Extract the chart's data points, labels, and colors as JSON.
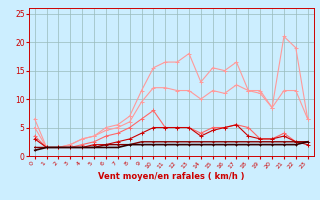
{
  "x": [
    0,
    1,
    2,
    3,
    4,
    5,
    6,
    7,
    8,
    9,
    10,
    11,
    12,
    13,
    14,
    15,
    16,
    17,
    18,
    19,
    20,
    21,
    22,
    23
  ],
  "series": [
    {
      "color": "#FF9999",
      "lw": 0.8,
      "marker": "+",
      "ms": 3,
      "mew": 0.7,
      "y": [
        6.5,
        1.5,
        1.5,
        2.0,
        3.0,
        3.5,
        5.0,
        5.5,
        7.0,
        11.5,
        15.5,
        16.5,
        16.5,
        18.0,
        13.0,
        15.5,
        15.0,
        16.5,
        11.5,
        11.5,
        8.5,
        21.0,
        19.0,
        6.5
      ]
    },
    {
      "color": "#FF9999",
      "lw": 0.8,
      "marker": "+",
      "ms": 3,
      "mew": 0.7,
      "y": [
        5.0,
        1.5,
        1.5,
        2.0,
        3.0,
        3.5,
        4.5,
        5.0,
        6.0,
        9.5,
        12.0,
        12.0,
        11.5,
        11.5,
        10.0,
        11.5,
        11.0,
        12.5,
        11.5,
        11.0,
        8.5,
        11.5,
        11.5,
        6.5
      ]
    },
    {
      "color": "#FF6666",
      "lw": 0.8,
      "marker": "+",
      "ms": 3,
      "mew": 0.7,
      "y": [
        3.5,
        1.5,
        1.5,
        1.5,
        2.0,
        2.5,
        3.5,
        4.0,
        5.0,
        6.5,
        8.0,
        5.0,
        5.0,
        5.0,
        4.0,
        5.0,
        5.0,
        5.5,
        5.0,
        3.0,
        3.0,
        4.0,
        2.5,
        2.5
      ]
    },
    {
      "color": "#CC0000",
      "lw": 0.8,
      "marker": "+",
      "ms": 3,
      "mew": 0.7,
      "y": [
        3.0,
        1.5,
        1.5,
        1.5,
        1.5,
        2.0,
        2.0,
        2.5,
        3.0,
        4.0,
        5.0,
        5.0,
        5.0,
        5.0,
        3.5,
        4.5,
        5.0,
        5.5,
        3.5,
        3.0,
        3.0,
        3.5,
        2.5,
        2.0
      ]
    },
    {
      "color": "#880000",
      "lw": 1.0,
      "marker": "+",
      "ms": 2,
      "mew": 0.7,
      "y": [
        1.5,
        1.5,
        1.5,
        1.5,
        1.5,
        1.5,
        2.0,
        2.0,
        2.0,
        2.5,
        2.5,
        2.5,
        2.5,
        2.5,
        2.5,
        2.5,
        2.5,
        2.5,
        2.5,
        2.5,
        2.5,
        2.5,
        2.5,
        2.5
      ]
    },
    {
      "color": "#330000",
      "lw": 1.2,
      "marker": "+",
      "ms": 2,
      "mew": 0.7,
      "y": [
        1.0,
        1.5,
        1.5,
        1.5,
        1.5,
        1.5,
        1.5,
        1.5,
        2.0,
        2.0,
        2.0,
        2.0,
        2.0,
        2.0,
        2.0,
        2.0,
        2.0,
        2.0,
        2.0,
        2.0,
        2.0,
        2.0,
        2.0,
        2.5
      ]
    }
  ],
  "xlabel": "Vent moyen/en rafales ( km/h )",
  "xlim": [
    -0.5,
    23.5
  ],
  "ylim": [
    0,
    26
  ],
  "yticks": [
    0,
    5,
    10,
    15,
    20,
    25
  ],
  "xticks": [
    0,
    1,
    2,
    3,
    4,
    5,
    6,
    7,
    8,
    9,
    10,
    11,
    12,
    13,
    14,
    15,
    16,
    17,
    18,
    19,
    20,
    21,
    22,
    23
  ],
  "bg_color": "#cceeff",
  "grid_color": "#99bbbb",
  "axis_color": "#cc0000",
  "tick_color": "#cc0000"
}
